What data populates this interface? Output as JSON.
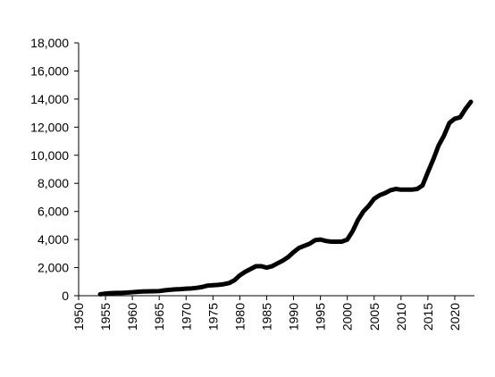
{
  "chart_data": {
    "type": "line",
    "x": [
      1954,
      1955,
      1956,
      1957,
      1958,
      1959,
      1960,
      1961,
      1962,
      1963,
      1964,
      1965,
      1966,
      1967,
      1968,
      1969,
      1970,
      1971,
      1972,
      1973,
      1974,
      1975,
      1976,
      1977,
      1978,
      1979,
      1980,
      1981,
      1982,
      1983,
      1984,
      1985,
      1986,
      1987,
      1988,
      1989,
      1990,
      1991,
      1992,
      1993,
      1994,
      1995,
      1996,
      1997,
      1998,
      1999,
      2000,
      2001,
      2002,
      2003,
      2004,
      2005,
      2006,
      2007,
      2008,
      2009,
      2010,
      2011,
      2012,
      2013,
      2014,
      2015,
      2016,
      2017,
      2018,
      2019,
      2020,
      2021,
      2022,
      2023
    ],
    "values": [
      100,
      150,
      180,
      200,
      200,
      220,
      250,
      280,
      300,
      310,
      320,
      330,
      380,
      420,
      450,
      470,
      500,
      520,
      560,
      620,
      720,
      750,
      770,
      820,
      900,
      1100,
      1450,
      1700,
      1900,
      2100,
      2100,
      2000,
      2100,
      2300,
      2500,
      2750,
      3100,
      3400,
      3550,
      3700,
      3950,
      4000,
      3900,
      3850,
      3850,
      3850,
      4000,
      4600,
      5400,
      6000,
      6400,
      6900,
      7150,
      7300,
      7500,
      7600,
      7550,
      7550,
      7550,
      7600,
      7850,
      8800,
      9700,
      10700,
      11400,
      12300,
      12600,
      12700,
      13300,
      13800
    ],
    "color": "#000000",
    "xlim": [
      1950,
      2023
    ],
    "xticks": [
      1950,
      1955,
      1960,
      1965,
      1970,
      1975,
      1980,
      1985,
      1990,
      1995,
      2000,
      2005,
      2010,
      2015,
      2020
    ],
    "ylim": [
      0,
      18000
    ],
    "yticks": [
      0,
      {
        "value": 2000,
        "label": "2,000"
      },
      {
        "value": 4000,
        "label": "4,000"
      },
      {
        "value": 6000,
        "label": "6,000"
      },
      {
        "value": 8000,
        "label": "8,000"
      },
      {
        "value": 10000,
        "label": "10,000"
      },
      {
        "value": 12000,
        "label": "12,000"
      },
      {
        "value": 14000,
        "label": "14,000"
      },
      {
        "value": 16000,
        "label": "16,000"
      },
      {
        "value": 18000,
        "label": "18,000"
      }
    ]
  }
}
